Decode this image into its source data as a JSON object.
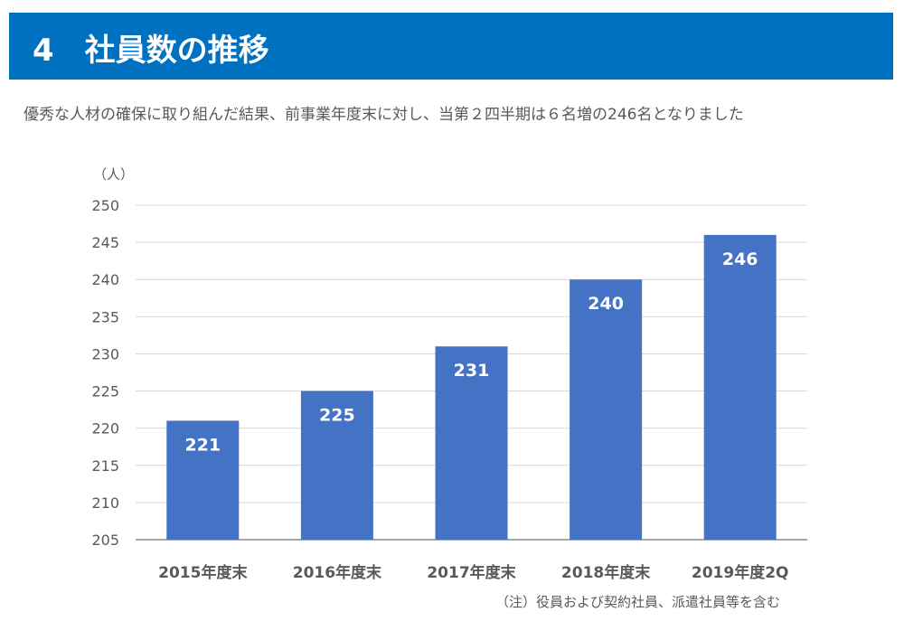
{
  "header": {
    "title": "4　社員数の推移",
    "background": "#0070c0"
  },
  "subtitle": "優秀な人材の確保に取り組んだ結果、前事業年度末に対し、当第２四半期は６名増の246名となりました",
  "chart_data": {
    "type": "bar",
    "categories": [
      "2015年度末",
      "2016年度末",
      "2017年度末",
      "2018年度末",
      "2019年度2Q"
    ],
    "values": [
      221,
      225,
      231,
      240,
      246
    ],
    "data_labels": [
      "221",
      "225",
      "231",
      "240",
      "246"
    ],
    "ylabel": "（人）",
    "ylim": [
      205,
      250
    ],
    "yticks": [
      "205",
      "210",
      "215",
      "220",
      "225",
      "230",
      "235",
      "240",
      "245",
      "250"
    ],
    "grid": true,
    "bar_color": "#4472c4"
  },
  "note": {
    "prefix": "（注）",
    "text": "役員および契約社員、派遣社員等を含む",
    "highlight_color": "#ffff00"
  }
}
